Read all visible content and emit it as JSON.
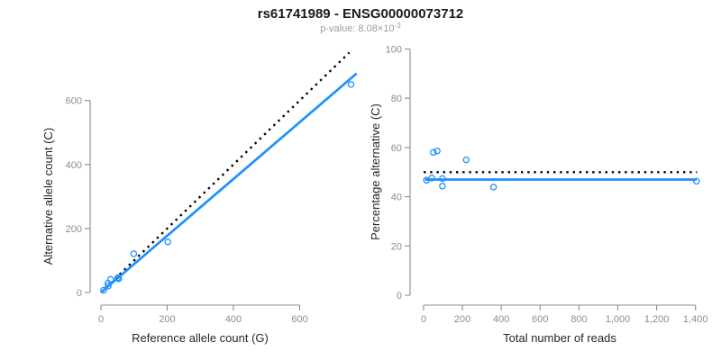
{
  "header": {
    "title": "rs61741989 - ENSG00000073712",
    "pvalue_prefix": "p-value: 8.08×10",
    "pvalue_exponent": "-3"
  },
  "colors": {
    "accent_blue": "#1E90FF",
    "identity_black": "#000000",
    "axis_gray": "#8c8c8c",
    "tick_text_gray": "#8c8c8c",
    "label_text": "#262626"
  },
  "chart_data": [
    {
      "type": "scatter",
      "name": "allele-counts-scatter",
      "xlabel": "Reference allele count (G)",
      "ylabel": "Alternative allele count (C)",
      "xlim": [
        0,
        770
      ],
      "ylim": [
        0,
        768
      ],
      "xtick_values": [
        0,
        200,
        400,
        600
      ],
      "xtick_labels": [
        "0",
        "200",
        "400",
        "600"
      ],
      "ytick_values": [
        0,
        200,
        400,
        600
      ],
      "ytick_labels": [
        "0",
        "200",
        "400",
        "600"
      ],
      "points": [
        [
          8,
          7
        ],
        [
          22,
          20
        ],
        [
          21,
          29
        ],
        [
          29,
          41
        ],
        [
          51,
          46
        ],
        [
          54,
          43
        ],
        [
          99,
          121
        ],
        [
          202,
          158
        ],
        [
          755,
          650
        ]
      ],
      "lines": [
        {
          "name": "identity-line",
          "slope": 1,
          "intercept": 0,
          "style": "dotted",
          "color": "#000000",
          "x_range": [
            0,
            750
          ]
        },
        {
          "name": "fit-line",
          "slope": 0.887,
          "intercept": 0,
          "style": "solid",
          "color": "#1E90FF",
          "x_range": [
            0,
            772
          ]
        }
      ]
    },
    {
      "type": "scatter",
      "name": "percentage-vs-reads-scatter",
      "xlabel": "Total number of reads",
      "ylabel": "Percentage alternative (C)",
      "xlim": [
        0,
        1480
      ],
      "ylim": [
        0,
        100
      ],
      "xtick_values": [
        0,
        200,
        400,
        600,
        800,
        1000,
        1200,
        1400
      ],
      "xtick_labels": [
        "0",
        "200",
        "400",
        "600",
        "800",
        "1,000",
        "1,200",
        "1,400"
      ],
      "ytick_values": [
        0,
        20,
        40,
        60,
        80,
        100
      ],
      "ytick_labels": [
        "0",
        "20",
        "40",
        "60",
        "80",
        "100"
      ],
      "points": [
        [
          15,
          46.7
        ],
        [
          42,
          47.6
        ],
        [
          50,
          58
        ],
        [
          70,
          58.6
        ],
        [
          97,
          47.4
        ],
        [
          97,
          44.3
        ],
        [
          220,
          55
        ],
        [
          360,
          43.9
        ],
        [
          1405,
          46.3
        ]
      ],
      "lines": [
        {
          "name": "expected-50pct-line",
          "hline": 50,
          "style": "dotted",
          "color": "#000000",
          "x_range": [
            0,
            1408
          ]
        },
        {
          "name": "fit-line",
          "hline": 47,
          "style": "solid",
          "color": "#1E90FF",
          "x_range": [
            8,
            1406
          ]
        }
      ]
    }
  ]
}
